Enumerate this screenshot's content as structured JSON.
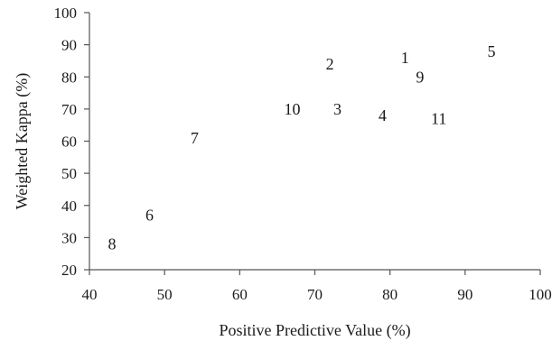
{
  "chart_data": {
    "type": "scatter",
    "title": "",
    "xlabel": "Positive Predictive Value (%)",
    "ylabel": "Weighted Kappa (%)",
    "xlim": [
      40,
      100
    ],
    "ylim": [
      20,
      100
    ],
    "xticks": [
      "40",
      "50",
      "60",
      "70",
      "80",
      "90",
      "100"
    ],
    "yticks": [
      "20",
      "30",
      "40",
      "50",
      "60",
      "70",
      "80",
      "90",
      "100"
    ],
    "grid": false,
    "legend": "none",
    "marker": "text-label",
    "points": [
      {
        "label": "1",
        "x": 82,
        "y": 86
      },
      {
        "label": "2",
        "x": 72,
        "y": 84
      },
      {
        "label": "3",
        "x": 73,
        "y": 70
      },
      {
        "label": "4",
        "x": 79,
        "y": 68
      },
      {
        "label": "5",
        "x": 93.5,
        "y": 88
      },
      {
        "label": "6",
        "x": 48,
        "y": 37
      },
      {
        "label": "7",
        "x": 54,
        "y": 61
      },
      {
        "label": "8",
        "x": 43,
        "y": 28
      },
      {
        "label": "9",
        "x": 84,
        "y": 80
      },
      {
        "label": "10",
        "x": 67,
        "y": 70
      },
      {
        "label": "11",
        "x": 86.5,
        "y": 67
      }
    ]
  }
}
